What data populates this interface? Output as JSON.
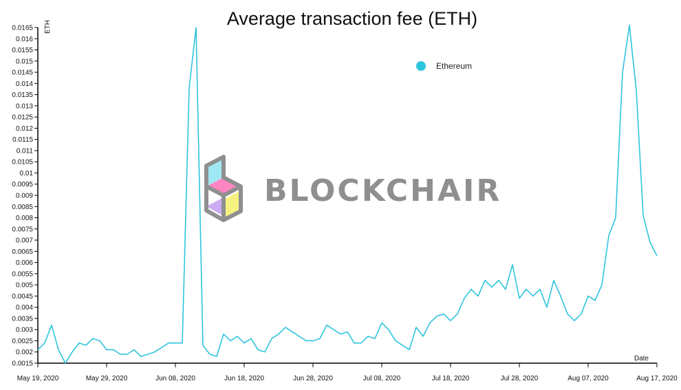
{
  "chart_data": {
    "type": "line",
    "title": "Average transaction fee (ETH)",
    "xlabel": "Date",
    "ylabel": "ETH",
    "ylim": [
      0.0015,
      0.0165
    ],
    "y_ticks": [
      "0.0015",
      "0.002",
      "0.0025",
      "0.003",
      "0.0035",
      "0.004",
      "0.0045",
      "0.005",
      "0.0055",
      "0.006",
      "0.0065",
      "0.007",
      "0.0075",
      "0.008",
      "0.0085",
      "0.009",
      "0.0095",
      "0.01",
      "0.0105",
      "0.011",
      "0.0115",
      "0.012",
      "0.0125",
      "0.013",
      "0.0135",
      "0.014",
      "0.0145",
      "0.015",
      "0.0155",
      "0.016",
      "0.0165"
    ],
    "x_ticks": [
      "May 19, 2020",
      "May 29, 2020",
      "Jun 08, 2020",
      "Jun 18, 2020",
      "Jun 28, 2020",
      "Jul 08, 2020",
      "Jul 18, 2020",
      "Jul 28, 2020",
      "Aug 07, 2020",
      "Aug 17, 2020"
    ],
    "legend_position": "top-right",
    "grid": false,
    "series": [
      {
        "name": "Ethereum",
        "color": "#2ec4dd",
        "x_start": "May 19, 2020",
        "values": [
          0.0021,
          0.0024,
          0.0032,
          0.0021,
          0.0015,
          0.002,
          0.0024,
          0.0023,
          0.0026,
          0.0025,
          0.0021,
          0.0021,
          0.0019,
          0.0019,
          0.0021,
          0.0018,
          0.0019,
          0.002,
          0.0022,
          0.0024,
          0.0024,
          0.0024,
          0.0138,
          0.0165,
          0.0023,
          0.0019,
          0.0018,
          0.0028,
          0.0025,
          0.0027,
          0.0024,
          0.0026,
          0.0021,
          0.002,
          0.0026,
          0.0028,
          0.0031,
          0.0029,
          0.0027,
          0.0025,
          0.0025,
          0.0026,
          0.0032,
          0.003,
          0.0028,
          0.0029,
          0.0024,
          0.0024,
          0.0027,
          0.0026,
          0.0033,
          0.003,
          0.0025,
          0.0023,
          0.0021,
          0.0031,
          0.0027,
          0.0033,
          0.0036,
          0.0037,
          0.0034,
          0.0037,
          0.0044,
          0.0048,
          0.0045,
          0.0052,
          0.0049,
          0.0052,
          0.0048,
          0.0059,
          0.0044,
          0.0048,
          0.0045,
          0.0048,
          0.004,
          0.0052,
          0.0045,
          0.0037,
          0.0034,
          0.0037,
          0.0045,
          0.0043,
          0.005,
          0.0072,
          0.008,
          0.0145,
          0.0166,
          0.0137,
          0.0081,
          0.0069,
          0.0063
        ]
      }
    ]
  },
  "watermark": {
    "text": "BLOCKCHAIR",
    "logo_colors": [
      "#9ae6f2",
      "#ff7fbf",
      "#c9a7f2",
      "#f6f27a",
      "#8a8a8a"
    ]
  }
}
